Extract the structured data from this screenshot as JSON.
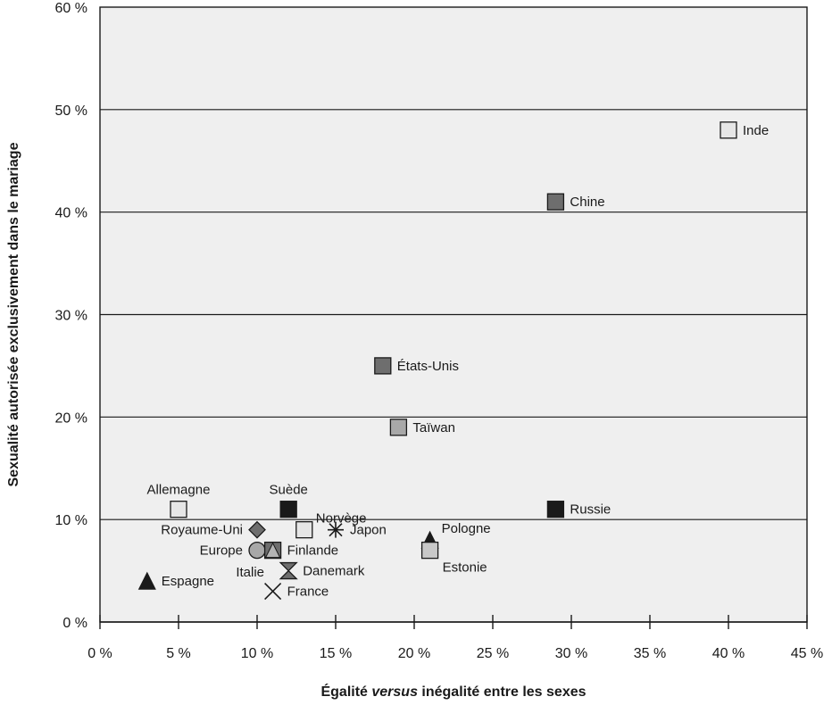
{
  "chart_data": {
    "type": "scatter",
    "xlabel_parts": [
      "Égalité ",
      "versus",
      " inégalité entre les sexes"
    ],
    "ylabel": "Sexualité autorisée exclusivement dans le mariage",
    "xlim": [
      0,
      45
    ],
    "ylim": [
      0,
      60
    ],
    "x_ticks": [
      0,
      5,
      10,
      15,
      20,
      25,
      30,
      35,
      40,
      45
    ],
    "x_tick_labels": [
      "0 %",
      "5 %",
      "10 %",
      "15 %",
      "20 %",
      "25 %",
      "30 %",
      "35 %",
      "40 %",
      "45 %"
    ],
    "y_ticks": [
      0,
      10,
      20,
      30,
      40,
      50,
      60
    ],
    "y_tick_labels": [
      "0 %",
      "10 %",
      "20 %",
      "30 %",
      "40 %",
      "50 %",
      "60 %"
    ],
    "grid": "horizontal",
    "colors": {
      "plot_bg": "#efefef",
      "light": "#e6e6e6",
      "mid": "#a8a8a8",
      "dark": "#6e6e6e",
      "black": "#1a1a1a"
    },
    "points": [
      {
        "label": "Inde",
        "x": 40,
        "y": 48,
        "marker": "square",
        "fill": "#e6e6e6",
        "label_pos": "right"
      },
      {
        "label": "Chine",
        "x": 29,
        "y": 41,
        "marker": "square",
        "fill": "#6e6e6e",
        "label_pos": "right"
      },
      {
        "label": "États-Unis",
        "x": 18,
        "y": 25,
        "marker": "square",
        "fill": "#6e6e6e",
        "label_pos": "right"
      },
      {
        "label": "Taïwan",
        "x": 19,
        "y": 19,
        "marker": "square",
        "fill": "#a8a8a8",
        "label_pos": "right"
      },
      {
        "label": "Russie",
        "x": 29,
        "y": 11,
        "marker": "square",
        "fill": "#1a1a1a",
        "label_pos": "right"
      },
      {
        "label": "Allemagne",
        "x": 5,
        "y": 11,
        "marker": "square",
        "fill": "#e6e6e6",
        "label_pos": "above"
      },
      {
        "label": "Suède",
        "x": 12,
        "y": 11,
        "marker": "square",
        "fill": "#1a1a1a",
        "label_pos": "above"
      },
      {
        "label": "Norvège",
        "x": 13,
        "y": 9,
        "marker": "square",
        "fill": "#e6e6e6",
        "label_pos": "above-right"
      },
      {
        "label": "Royaume-Uni",
        "x": 10,
        "y": 9,
        "marker": "diamond",
        "fill": "#6e6e6e",
        "label_pos": "left"
      },
      {
        "label": "Japon",
        "x": 15,
        "y": 9,
        "marker": "asterisk",
        "fill": "#1a1a1a",
        "label_pos": "right"
      },
      {
        "label": "Europe",
        "x": 10,
        "y": 7,
        "marker": "circle",
        "fill": "#a8a8a8",
        "label_pos": "left"
      },
      {
        "label": "Italie",
        "x": 10,
        "y": 5.5,
        "marker": "none",
        "fill": "#1a1a1a",
        "label_pos": "below-left"
      },
      {
        "label": "Finlande",
        "x": 11,
        "y": 7,
        "marker": "square-triangle",
        "fill": "#6e6e6e",
        "label_pos": "right"
      },
      {
        "label": "Danemark",
        "x": 12,
        "y": 5,
        "marker": "hourglass",
        "fill": "#6e6e6e",
        "label_pos": "right"
      },
      {
        "label": "France",
        "x": 11,
        "y": 3,
        "marker": "cross",
        "fill": "#1a1a1a",
        "label_pos": "right"
      },
      {
        "label": "Espagne",
        "x": 3,
        "y": 4,
        "marker": "triangle",
        "fill": "#1a1a1a",
        "label_pos": "right"
      },
      {
        "label": "Pologne",
        "x": 21,
        "y": 8,
        "marker": "triangle",
        "fill": "#1a1a1a",
        "label_pos": "above-right"
      },
      {
        "label": "Estonie",
        "x": 21,
        "y": 7,
        "marker": "square",
        "fill": "#c8c8c8",
        "label_pos": "below-right"
      }
    ]
  }
}
